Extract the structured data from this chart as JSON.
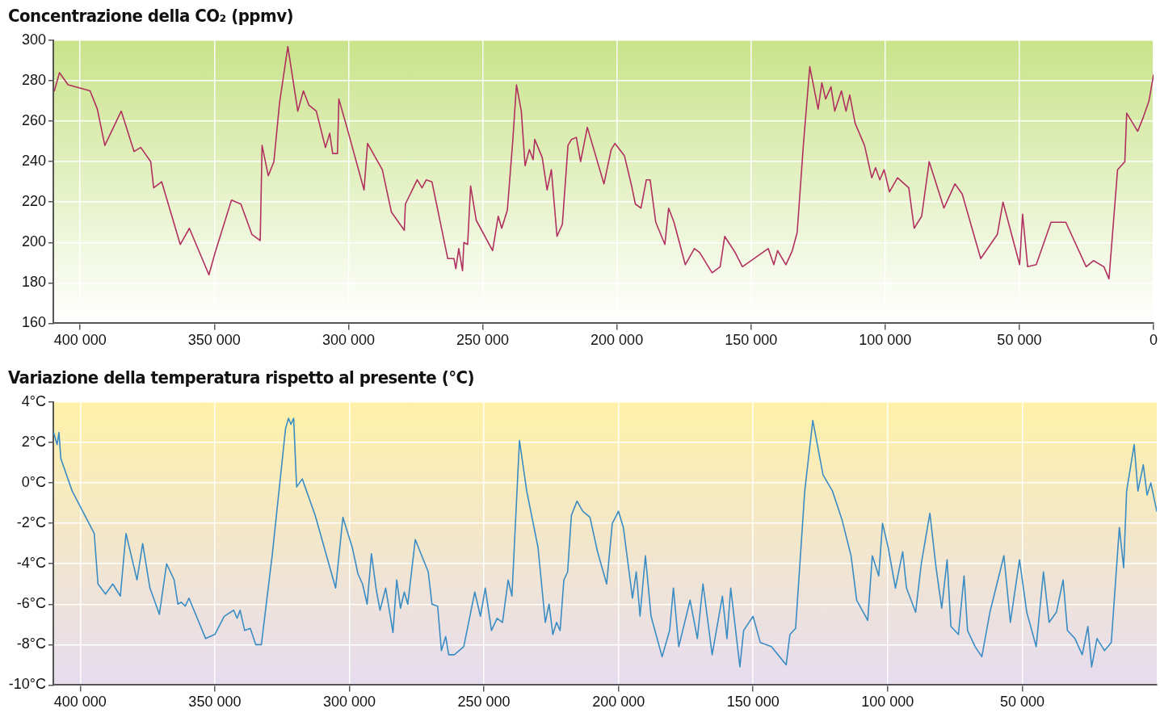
{
  "chart_data": [
    {
      "type": "line",
      "title": "Concentrazione della CO₂ (ppmv)",
      "series": [
        {
          "color": "#b03060",
          "x": [
            409600,
            407700,
            404500,
            396300,
            393600,
            390800,
            384700,
            379900,
            377400,
            373700,
            372600,
            369600,
            362700,
            359300,
            352000,
            349700,
            343600,
            340100,
            336000,
            332900,
            332200,
            329900,
            327800,
            325700,
            322600,
            318900,
            316800,
            314800,
            312000,
            308600,
            307000,
            305900,
            304100,
            303600,
            300400,
            294200,
            292900,
            287400,
            284000,
            279200,
            278800,
            274400,
            272600,
            271000,
            268900,
            263000,
            260700,
            260000,
            258900,
            257500,
            257000,
            255600,
            254500,
            252400,
            246300,
            244200,
            242900,
            240800,
            238800,
            237400,
            235600,
            234200,
            232600,
            231200,
            230600,
            227800,
            226000,
            224400,
            222300,
            220300,
            218200,
            216900,
            215100,
            213500,
            211000,
            204800,
            202100,
            200700,
            197200,
            194500,
            193100,
            191000,
            189000,
            187600,
            185500,
            182100,
            180700,
            178700,
            174500,
            171100,
            169100,
            164500,
            161500,
            159800,
            155900,
            153200,
            143600,
            141500,
            140100,
            137000,
            134600,
            132800,
            130500,
            128100,
            125000,
            123600,
            122200,
            120200,
            118800,
            116300,
            114600,
            113200,
            111200,
            107700,
            105000,
            103600,
            102000,
            100400,
            98400,
            95400,
            91200,
            89200,
            86400,
            83600,
            78100,
            74000,
            71300,
            64400,
            58200,
            56100,
            49900,
            48800,
            46900,
            43700,
            38200,
            32700,
            25100,
            22400,
            18500,
            16600,
            13400,
            10700,
            10000,
            5900,
            3800,
            1700,
            0
          ],
          "values": [
            275,
            284,
            278,
            275,
            266,
            248,
            265,
            245,
            247,
            240,
            227,
            230,
            199,
            207,
            184,
            195,
            221,
            219,
            204,
            201,
            248,
            233,
            240,
            269,
            297,
            265,
            275,
            268,
            265,
            247,
            254,
            244,
            244,
            271,
            256,
            226,
            249,
            236,
            215,
            206,
            219,
            231,
            227,
            231,
            230,
            192,
            192,
            187,
            197,
            186,
            200,
            199,
            228,
            211,
            196,
            213,
            207,
            216,
            250,
            278,
            265,
            238,
            246,
            241,
            251,
            242,
            226,
            236,
            203,
            209,
            248,
            251,
            252,
            240,
            257,
            229,
            246,
            249,
            243,
            228,
            219,
            217,
            231,
            231,
            210,
            199,
            217,
            210,
            189,
            197,
            195,
            185,
            188,
            203,
            195,
            188,
            197,
            189,
            196,
            189,
            196,
            205,
            248,
            287,
            266,
            279,
            271,
            277,
            265,
            275,
            265,
            273,
            259,
            248,
            232,
            237,
            231,
            236,
            225,
            232,
            227,
            207,
            213,
            240,
            217,
            229,
            224,
            192,
            204,
            220,
            189,
            214,
            188,
            189,
            210,
            210,
            188,
            191,
            188,
            182,
            236,
            240,
            264,
            255,
            262,
            270,
            283
          ]
        }
      ],
      "xlim": [
        410000,
        0
      ],
      "xticks": [
        {
          "value": 400000,
          "label": "400 000"
        },
        {
          "value": 350000,
          "label": "350 000"
        },
        {
          "value": 300000,
          "label": "300 000"
        },
        {
          "value": 250000,
          "label": "250 000"
        },
        {
          "value": 200000,
          "label": "200 000"
        },
        {
          "value": 150000,
          "label": "150 000"
        },
        {
          "value": 100000,
          "label": "100 000"
        },
        {
          "value": 50000,
          "label": "50 000"
        },
        0
      ],
      "ylim": [
        160,
        300
      ],
      "yticks": [
        160,
        180,
        200,
        220,
        240,
        260,
        280,
        300
      ],
      "grid": true,
      "marker": "none",
      "line_style": "solid",
      "legend": false
    },
    {
      "type": "line",
      "title": "Variazione della temperatura rispetto al presente (°C)",
      "series": [
        {
          "color": "#3a8cc4",
          "x": [
            409900,
            408600,
            407900,
            407200,
            403000,
            394800,
            393400,
            390600,
            387900,
            385100,
            383000,
            378900,
            376800,
            374100,
            370600,
            367900,
            365100,
            363700,
            362400,
            361000,
            359600,
            353400,
            350000,
            346500,
            343000,
            341700,
            340600,
            338900,
            336800,
            334800,
            332700,
            328600,
            323700,
            322600,
            321700,
            320700,
            319600,
            317500,
            312700,
            305100,
            302400,
            298900,
            296800,
            295100,
            293400,
            291800,
            290000,
            288600,
            286500,
            283800,
            282400,
            281000,
            279600,
            278300,
            275500,
            270700,
            269300,
            267200,
            265800,
            264200,
            263100,
            261000,
            257500,
            253400,
            251300,
            249500,
            247200,
            245100,
            243100,
            241000,
            239600,
            236800,
            234100,
            229900,
            227200,
            225800,
            224400,
            223000,
            221700,
            220300,
            218900,
            217500,
            215400,
            213300,
            210600,
            207800,
            204400,
            202300,
            200000,
            198200,
            194800,
            193400,
            192000,
            190000,
            187900,
            183800,
            181000,
            179600,
            177600,
            173400,
            170700,
            168600,
            165200,
            161400,
            159700,
            158300,
            154900,
            153500,
            150000,
            147300,
            143200,
            137700,
            136300,
            134200,
            130800,
            127800,
            126400,
            124000,
            120500,
            117000,
            113600,
            111500,
            107400,
            105700,
            103300,
            101900,
            99800,
            97100,
            94400,
            93000,
            89600,
            87500,
            84300,
            82000,
            79900,
            77900,
            76500,
            73700,
            71600,
            70300,
            67500,
            65000,
            62000,
            56800,
            54400,
            51000,
            48300,
            44800,
            42100,
            40000,
            37300,
            34800,
            33200,
            30400,
            27700,
            25600,
            24200,
            22200,
            19400,
            16900,
            13900,
            12300,
            11200,
            8400,
            7000,
            5000,
            3600,
            2200,
            0
          ],
          "values": [
            2.5,
            1.9,
            2.5,
            1.2,
            -0.4,
            -2.5,
            -5.0,
            -5.5,
            -5.0,
            -5.6,
            -2.5,
            -4.8,
            -3.0,
            -5.2,
            -6.5,
            -4.0,
            -4.8,
            -6.0,
            -5.9,
            -6.1,
            -5.7,
            -7.7,
            -7.5,
            -6.6,
            -6.3,
            -6.7,
            -6.3,
            -7.3,
            -7.2,
            -8.0,
            -8.0,
            -3.5,
            2.7,
            3.2,
            2.9,
            3.2,
            -0.2,
            0.2,
            -1.6,
            -5.2,
            -1.7,
            -3.2,
            -4.5,
            -5.0,
            -6.0,
            -3.5,
            -5.3,
            -6.3,
            -5.2,
            -7.4,
            -4.8,
            -6.2,
            -5.4,
            -6.0,
            -2.8,
            -4.4,
            -6.0,
            -6.1,
            -8.3,
            -7.6,
            -8.5,
            -8.5,
            -8.1,
            -5.4,
            -6.6,
            -5.2,
            -7.3,
            -6.7,
            -6.9,
            -4.8,
            -5.6,
            2.1,
            -0.4,
            -3.2,
            -6.9,
            -6.0,
            -7.5,
            -6.9,
            -7.3,
            -4.8,
            -4.4,
            -1.6,
            -0.9,
            -1.4,
            -1.7,
            -3.4,
            -5.0,
            -2.0,
            -1.4,
            -2.2,
            -5.7,
            -4.4,
            -6.6,
            -3.6,
            -6.6,
            -8.6,
            -7.3,
            -5.2,
            -8.1,
            -5.8,
            -7.7,
            -5.0,
            -8.5,
            -5.6,
            -7.7,
            -5.2,
            -9.1,
            -7.3,
            -6.6,
            -7.9,
            -8.1,
            -9.0,
            -7.5,
            -7.2,
            -0.4,
            3.1,
            2.1,
            0.4,
            -0.4,
            -1.8,
            -3.6,
            -5.8,
            -6.8,
            -3.6,
            -4.6,
            -2.0,
            -3.2,
            -5.2,
            -3.4,
            -5.2,
            -6.4,
            -4.0,
            -1.5,
            -4.2,
            -6.2,
            -3.8,
            -7.1,
            -7.5,
            -4.6,
            -7.3,
            -8.1,
            -8.6,
            -6.4,
            -3.6,
            -6.9,
            -3.8,
            -6.4,
            -8.1,
            -4.4,
            -6.9,
            -6.4,
            -4.8,
            -7.3,
            -7.7,
            -8.5,
            -7.1,
            -9.1,
            -7.7,
            -8.3,
            -7.9,
            -2.2,
            -4.2,
            -0.4,
            1.9,
            -0.4,
            0.9,
            -0.6,
            0.0,
            -1.4
          ]
        }
      ],
      "xlim": [
        410000,
        0
      ],
      "xticks": [
        {
          "value": 400000,
          "label": "400 000"
        },
        {
          "value": 350000,
          "label": "350 000"
        },
        {
          "value": 300000,
          "label": "300 000"
        },
        {
          "value": 250000,
          "label": "250 000"
        },
        {
          "value": 200000,
          "label": "200 000"
        },
        {
          "value": 150000,
          "label": "150 000"
        },
        {
          "value": 100000,
          "label": "100 000"
        },
        {
          "value": 50000,
          "label": "50 000"
        }
      ],
      "ylim": [
        -10,
        4
      ],
      "yticks": [
        {
          "value": -10,
          "label": "-10°C"
        },
        {
          "value": -8,
          "label": "-8°C"
        },
        {
          "value": -6,
          "label": "-6°C"
        },
        {
          "value": -4,
          "label": "-4°C"
        },
        {
          "value": -2,
          "label": "-2°C"
        },
        {
          "value": 0,
          "label": "0°C"
        },
        {
          "value": 2,
          "label": "2°C"
        },
        {
          "value": 4,
          "label": "4°C"
        }
      ],
      "grid": true,
      "marker": "none",
      "line_style": "solid",
      "legend": false
    }
  ]
}
